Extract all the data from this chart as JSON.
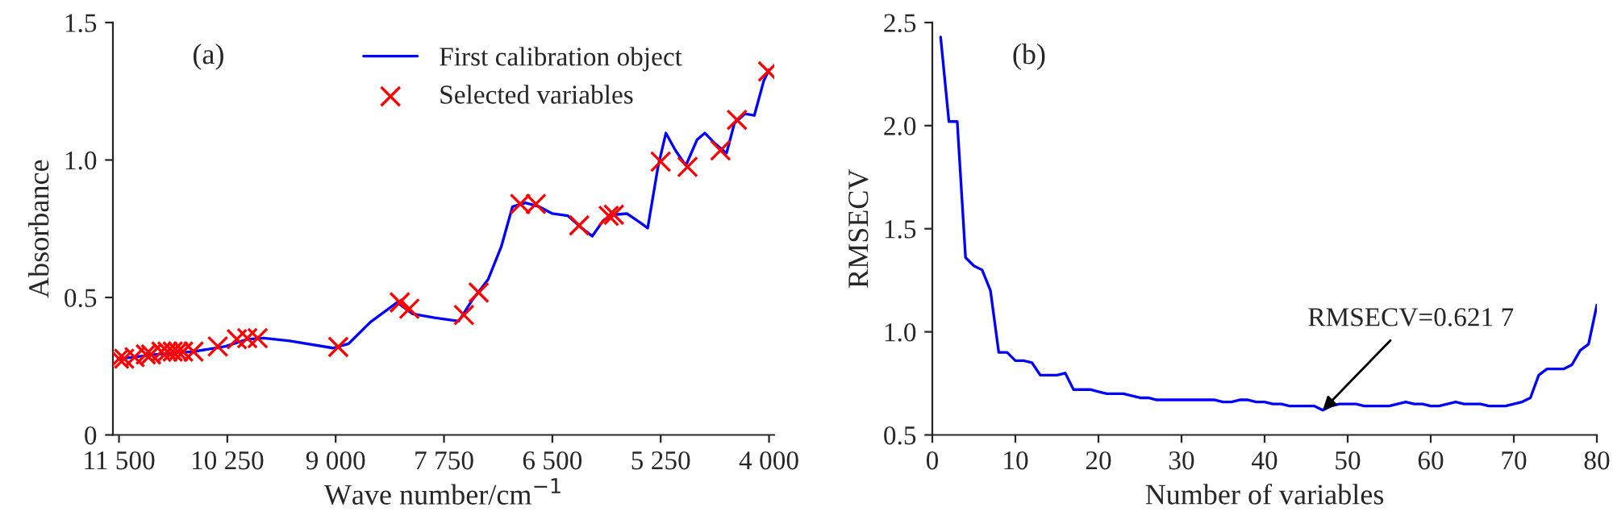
{
  "chart_data": [
    {
      "type": "line",
      "xlabel": "Wave number/cm$^{−1}$",
      "ylabel": "Absorbance",
      "annotations": [
        "(a)"
      ],
      "legend": "top",
      "xlim": [
        11570,
        3940
      ],
      "ylim": [
        0,
        1.5
      ],
      "xticks": [
        {
          "value": 11500,
          "label": "11 500"
        },
        {
          "value": 10250,
          "label": "10 250"
        },
        {
          "value": 9000,
          "label": "9 000"
        },
        {
          "value": 7750,
          "label": "7 750"
        },
        {
          "value": 6500,
          "label": "6 500"
        },
        {
          "value": 5250,
          "label": "5 250"
        },
        {
          "value": 4000,
          "label": "4 000"
        }
      ],
      "yticks": [
        0,
        {
          "value": 0.5,
          "label": "0.5"
        },
        {
          "value": 1,
          "label": "1.0"
        },
        {
          "value": 1.5,
          "label": "1.5"
        }
      ],
      "series": [
        {
          "name": "First calibration object",
          "color": "#0000ff",
          "x": [
            11500,
            11070,
            10640,
            10270,
            10020,
            9830,
            9530,
            9030,
            8850,
            8600,
            8290,
            8110,
            7860,
            7580,
            7430,
            7240,
            7090,
            6960,
            6810,
            6650,
            6500,
            6320,
            6160,
            6040,
            5910,
            5790,
            5640,
            5480,
            5400,
            5280,
            5190,
            5080,
            4960,
            4830,
            4740,
            4620,
            4490,
            4400,
            4280,
            4170,
            4060,
            4000
          ],
          "values": [
            0.277,
            0.293,
            0.303,
            0.322,
            0.348,
            0.352,
            0.342,
            0.316,
            0.332,
            0.41,
            0.482,
            0.44,
            0.426,
            0.414,
            0.488,
            0.566,
            0.684,
            0.83,
            0.844,
            0.83,
            0.805,
            0.797,
            0.752,
            0.723,
            0.781,
            0.801,
            0.805,
            0.771,
            0.752,
            0.977,
            1.098,
            1.035,
            0.98,
            1.074,
            1.098,
            1.059,
            1.025,
            1.133,
            1.168,
            1.162,
            1.289,
            1.328
          ]
        },
        {
          "name": "Selected variables",
          "type": "scatter",
          "marker": "cross",
          "color": "#ff0000",
          "x": [
            11500,
            11440,
            11320,
            11190,
            11130,
            11010,
            10940,
            10880,
            10820,
            10760,
            10640,
            10360,
            10140,
            10020,
            9900,
            8970,
            8260,
            8150,
            7520,
            7350,
            6870,
            6690,
            6190,
            5850,
            5790,
            5250,
            4940,
            4560,
            4370,
            4010
          ],
          "values": [
            0.277,
            0.277,
            0.283,
            0.293,
            0.293,
            0.303,
            0.303,
            0.303,
            0.303,
            0.303,
            0.303,
            0.322,
            0.348,
            0.352,
            0.352,
            0.32,
            0.482,
            0.459,
            0.436,
            0.518,
            0.84,
            0.84,
            0.762,
            0.797,
            0.801,
            0.994,
            0.975,
            1.035,
            1.146,
            1.322
          ]
        }
      ]
    },
    {
      "type": "line",
      "xlabel": "Number of variables",
      "ylabel": "RMSECV",
      "annotations": [
        "(b)",
        {
          "text": "RMSECV=0.621 7",
          "x": 47,
          "y": 0.62
        }
      ],
      "xlim": [
        0,
        80
      ],
      "ylim": [
        0.5,
        2.5
      ],
      "xticks": [
        0,
        10,
        20,
        30,
        40,
        50,
        60,
        70,
        80
      ],
      "yticks": [
        {
          "value": 0.5,
          "label": "0.5"
        },
        {
          "value": 1,
          "label": "1.0"
        },
        {
          "value": 1.5,
          "label": "1.5"
        },
        {
          "value": 2,
          "label": "2.0"
        },
        {
          "value": 2.5,
          "label": "2.5"
        }
      ],
      "series": [
        {
          "color": "#0000ff",
          "x": [
            1,
            2,
            3,
            4,
            5,
            6,
            7,
            8,
            9,
            10,
            11,
            12,
            13,
            14,
            15,
            16,
            17,
            18,
            19,
            20,
            21,
            22,
            23,
            24,
            25,
            26,
            27,
            28,
            29,
            30,
            31,
            32,
            33,
            34,
            35,
            36,
            37,
            38,
            39,
            40,
            41,
            42,
            43,
            44,
            45,
            46,
            47,
            48,
            49,
            50,
            51,
            52,
            53,
            54,
            55,
            56,
            57,
            58,
            59,
            60,
            61,
            62,
            63,
            64,
            65,
            66,
            67,
            68,
            69,
            70,
            71,
            72,
            73,
            74,
            75,
            76,
            77,
            78,
            79,
            80
          ],
          "values": [
            2.43,
            2.02,
            2.02,
            1.36,
            1.32,
            1.3,
            1.2,
            0.9,
            0.9,
            0.86,
            0.86,
            0.85,
            0.79,
            0.79,
            0.79,
            0.8,
            0.72,
            0.72,
            0.72,
            0.71,
            0.7,
            0.7,
            0.7,
            0.69,
            0.68,
            0.68,
            0.67,
            0.67,
            0.67,
            0.67,
            0.67,
            0.67,
            0.67,
            0.67,
            0.66,
            0.66,
            0.67,
            0.67,
            0.66,
            0.66,
            0.65,
            0.65,
            0.64,
            0.64,
            0.64,
            0.64,
            0.62,
            0.64,
            0.65,
            0.65,
            0.65,
            0.64,
            0.64,
            0.64,
            0.64,
            0.65,
            0.66,
            0.65,
            0.65,
            0.64,
            0.64,
            0.65,
            0.66,
            0.65,
            0.65,
            0.65,
            0.64,
            0.64,
            0.64,
            0.65,
            0.66,
            0.68,
            0.79,
            0.82,
            0.82,
            0.82,
            0.84,
            0.91,
            0.94,
            1.13
          ]
        }
      ]
    }
  ]
}
